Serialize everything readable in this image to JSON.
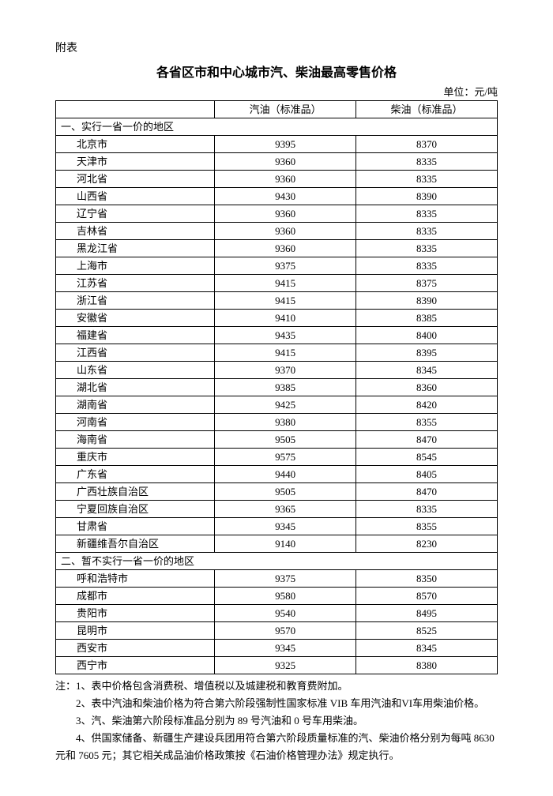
{
  "attachment_label": "附表",
  "title": "各省区市和中心城市汽、柴油最高零售价格",
  "unit": "单位：元/吨",
  "table": {
    "headers": {
      "region": "",
      "gasoline": "汽油（标准品）",
      "diesel": "柴油（标准品）"
    },
    "section1": "一、实行一省一价的地区",
    "rows1": [
      {
        "region": "北京市",
        "gas": "9395",
        "diesel": "8370"
      },
      {
        "region": "天津市",
        "gas": "9360",
        "diesel": "8335"
      },
      {
        "region": "河北省",
        "gas": "9360",
        "diesel": "8335"
      },
      {
        "region": "山西省",
        "gas": "9430",
        "diesel": "8390"
      },
      {
        "region": "辽宁省",
        "gas": "9360",
        "diesel": "8335"
      },
      {
        "region": "吉林省",
        "gas": "9360",
        "diesel": "8335"
      },
      {
        "region": "黑龙江省",
        "gas": "9360",
        "diesel": "8335"
      },
      {
        "region": "上海市",
        "gas": "9375",
        "diesel": "8335"
      },
      {
        "region": "江苏省",
        "gas": "9415",
        "diesel": "8375"
      },
      {
        "region": "浙江省",
        "gas": "9415",
        "diesel": "8390"
      },
      {
        "region": "安徽省",
        "gas": "9410",
        "diesel": "8385"
      },
      {
        "region": "福建省",
        "gas": "9435",
        "diesel": "8400"
      },
      {
        "region": "江西省",
        "gas": "9415",
        "diesel": "8395"
      },
      {
        "region": "山东省",
        "gas": "9370",
        "diesel": "8345"
      },
      {
        "region": "湖北省",
        "gas": "9385",
        "diesel": "8360"
      },
      {
        "region": "湖南省",
        "gas": "9425",
        "diesel": "8420"
      },
      {
        "region": "河南省",
        "gas": "9380",
        "diesel": "8355"
      },
      {
        "region": "海南省",
        "gas": "9505",
        "diesel": "8470"
      },
      {
        "region": "重庆市",
        "gas": "9575",
        "diesel": "8545"
      },
      {
        "region": "广东省",
        "gas": "9440",
        "diesel": "8405"
      },
      {
        "region": "广西壮族自治区",
        "gas": "9505",
        "diesel": "8470"
      },
      {
        "region": "宁夏回族自治区",
        "gas": "9365",
        "diesel": "8335"
      },
      {
        "region": "甘肃省",
        "gas": "9345",
        "diesel": "8355"
      },
      {
        "region": "新疆维吾尔自治区",
        "gas": "9140",
        "diesel": "8230"
      }
    ],
    "section2": "二、暂不实行一省一价的地区",
    "rows2": [
      {
        "region": "呼和浩特市",
        "gas": "9375",
        "diesel": "8350"
      },
      {
        "region": "成都市",
        "gas": "9580",
        "diesel": "8570"
      },
      {
        "region": "贵阳市",
        "gas": "9540",
        "diesel": "8495"
      },
      {
        "region": "昆明市",
        "gas": "9570",
        "diesel": "8525"
      },
      {
        "region": "西安市",
        "gas": "9345",
        "diesel": "8345"
      },
      {
        "region": "西宁市",
        "gas": "9325",
        "diesel": "8380"
      }
    ]
  },
  "notes": {
    "n1": "注：1、表中价格包含消费税、增值税以及城建税和教育费附加。",
    "n2": "　　2、表中汽油和柴油价格为符合第六阶段强制性国家标准 VIB 车用汽油和VI车用柴油价格。",
    "n3": "　　3、汽、柴油第六阶段标准品分别为 89 号汽油和 0 号车用柴油。",
    "n4": "　　4、供国家储备、新疆生产建设兵团用符合第六阶段质量标准的汽、柴油价格分别为每吨 8630 元和 7605 元；其它相关成品油价格政策按《石油价格管理办法》规定执行。"
  }
}
